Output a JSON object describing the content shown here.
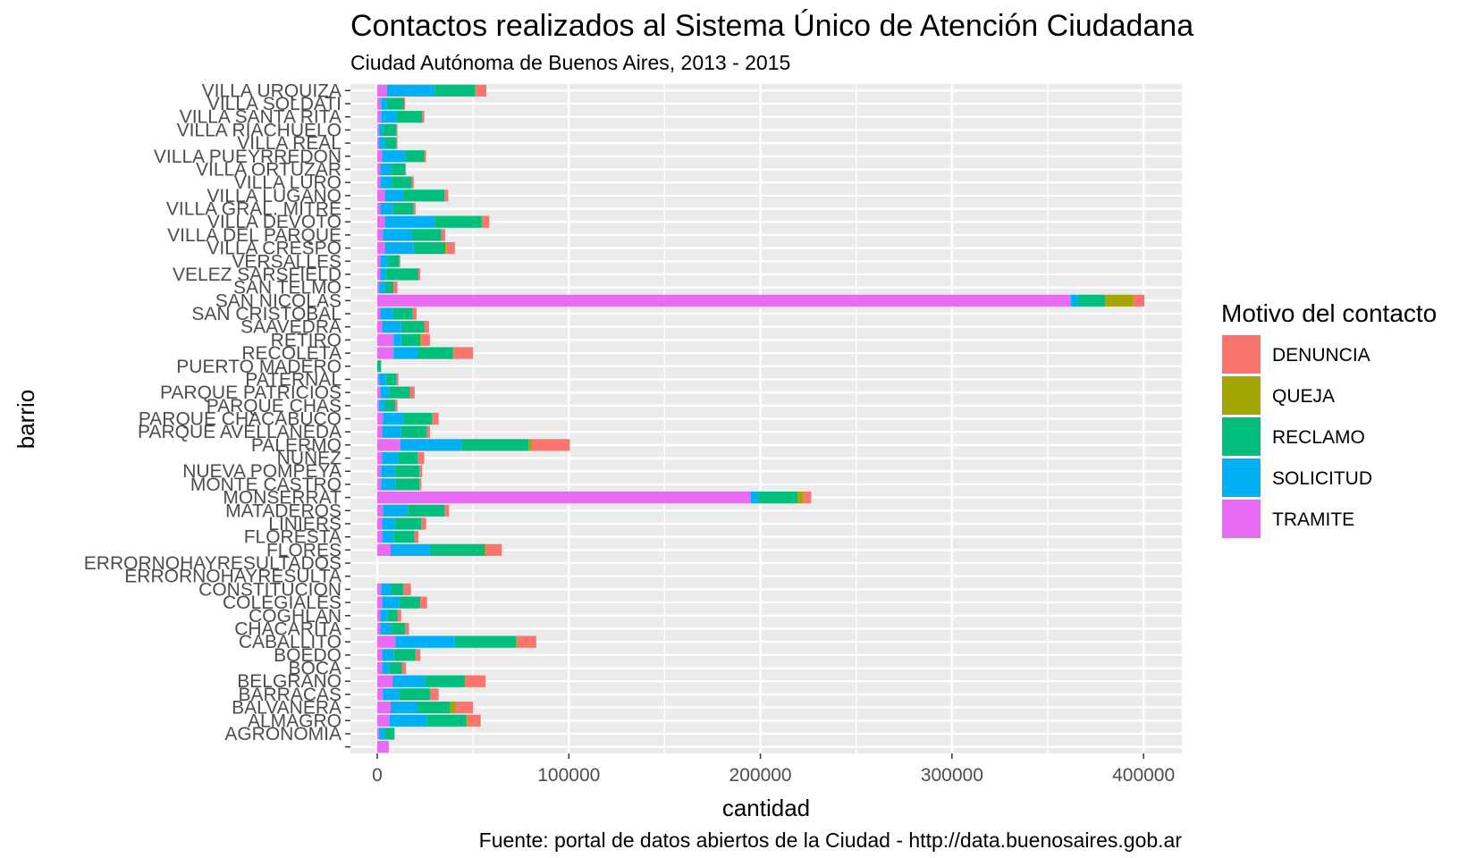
{
  "chart_data": {
    "type": "bar",
    "orientation": "horizontal",
    "stacked": true,
    "title": "Contactos realizados al Sistema Único de Atención Ciudadana",
    "subtitle": "Ciudad Autónoma de Buenos Aires, 2013 - 2015",
    "xlabel": "cantidad",
    "ylabel": "barrio",
    "caption": "Fuente: portal de datos abiertos de la Ciudad - http://data.buenosaires.gob.ar",
    "xlim": [
      -14000,
      420000
    ],
    "xticks": [
      0,
      100000,
      200000,
      300000,
      400000
    ],
    "xtick_labels": [
      "0",
      "100000",
      "200000",
      "300000",
      "400000"
    ],
    "grid": true,
    "legend_title": "Motivo del contacto",
    "legend_position": "right",
    "categories": [
      "VILLA URQUIZA",
      "VILLA SOLDATI",
      "VILLA SANTA RITA",
      "VILLA RIACHUELO",
      "VILLA REAL",
      "VILLA PUEYRREDON",
      "VILLA ORTUZAR",
      "VILLA LURO",
      "VILLA LUGANO",
      "VILLA GRAL. MITRE",
      "VILLA DEVOTO",
      "VILLA DEL PARQUE",
      "VILLA CRESPO",
      "VERSALLES",
      "VELEZ SARSFIELD",
      "SAN TELMO",
      "SAN NICOLAS",
      "SAN CRISTOBAL",
      "SAAVEDRA",
      "RETIRO",
      "RECOLETA",
      "PUERTO MADERO",
      "PATERNAL",
      "PARQUE PATRICIOS",
      "PARQUE CHAS",
      "PARQUE CHACABUCO",
      "PARQUE AVELLANEDA",
      "PALERMO",
      "NUÑEZ",
      "NUEVA POMPEYA",
      "MONTE CASTRO",
      "MONSERRAT",
      "MATADEROS",
      "LINIERS",
      "FLORESTA",
      "FLORES",
      "ERRORNOHAYRESULTADOS",
      "ERRORNOHAYRESULTA",
      "CONSTITUCION",
      "COLEGIALES",
      "COGHLAN",
      "CHACARITA",
      "CABALLITO",
      "BOEDO",
      "BOCA",
      "BELGRANO",
      "BARRACAS",
      "BALVANERA",
      "ALMAGRO",
      "AGRONOMIA",
      ""
    ],
    "series": [
      {
        "name": "TRAMITE",
        "color": "#E76BF3",
        "values": [
          5000,
          2000,
          2000,
          1000,
          1000,
          2500,
          1500,
          1500,
          4000,
          1500,
          4000,
          3000,
          4000,
          1500,
          1500,
          1000,
          362000,
          1500,
          2500,
          8500,
          8500,
          0,
          1000,
          1500,
          1000,
          3000,
          2500,
          12000,
          2500,
          2000,
          2000,
          195000,
          3000,
          2500,
          2500,
          7000,
          0,
          0,
          2000,
          2500,
          1500,
          1500,
          9500,
          2500,
          2500,
          8000,
          3000,
          7000,
          6500,
          1000,
          6000
        ]
      },
      {
        "name": "SOLICITUD",
        "color": "#00B0F6",
        "values": [
          25000,
          3000,
          8000,
          2000,
          3000,
          12000,
          6000,
          6000,
          9500,
          6500,
          26000,
          15000,
          15000,
          4000,
          3000,
          3000,
          3500,
          6500,
          10000,
          4000,
          12500,
          0,
          3500,
          5000,
          3000,
          11000,
          10000,
          32000,
          8500,
          7000,
          7500,
          4000,
          13000,
          6500,
          6000,
          20500,
          0,
          0,
          5000,
          9000,
          4000,
          6000,
          31000,
          6000,
          4000,
          17000,
          8500,
          14000,
          19500,
          3000,
          0
        ]
      },
      {
        "name": "RECLAMO",
        "color": "#00BF7D",
        "values": [
          21000,
          9000,
          13500,
          7000,
          6000,
          10000,
          7000,
          10500,
          21500,
          11000,
          24500,
          15500,
          16500,
          6000,
          17000,
          4500,
          14500,
          10500,
          12000,
          10000,
          18500,
          2000,
          5500,
          10500,
          5500,
          14500,
          13500,
          35000,
          10000,
          13000,
          12500,
          20500,
          19000,
          14000,
          11000,
          28500,
          0,
          0,
          6500,
          11000,
          5000,
          7000,
          32000,
          11500,
          6500,
          20500,
          16000,
          17000,
          20500,
          5000,
          0
        ]
      },
      {
        "name": "QUEJA",
        "color": "#A3A500",
        "values": [
          500,
          0,
          0,
          0,
          0,
          0,
          0,
          0,
          0,
          0,
          500,
          0,
          500,
          0,
          0,
          0,
          14500,
          0,
          0,
          500,
          500,
          0,
          0,
          0,
          0,
          500,
          0,
          1500,
          0,
          0,
          0,
          3000,
          0,
          0,
          0,
          500,
          0,
          0,
          0,
          0,
          0,
          0,
          500,
          0,
          0,
          500,
          0,
          3000,
          500,
          0,
          0
        ]
      },
      {
        "name": "DENUNCIA",
        "color": "#F8766D",
        "values": [
          5500,
          500,
          1000,
          500,
          500,
          1000,
          500,
          1000,
          2000,
          1000,
          3500,
          2000,
          4500,
          500,
          1000,
          2000,
          6000,
          2000,
          2500,
          4500,
          10000,
          0,
          1000,
          2500,
          1000,
          3000,
          1500,
          20000,
          3500,
          1500,
          1000,
          4000,
          2500,
          2500,
          2000,
          8500,
          0,
          0,
          4000,
          3500,
          2000,
          2000,
          10000,
          2500,
          2000,
          10500,
          4500,
          9000,
          7000,
          0,
          0
        ]
      }
    ],
    "legend_order": [
      "DENUNCIA",
      "QUEJA",
      "RECLAMO",
      "SOLICITUD",
      "TRAMITE"
    ]
  }
}
